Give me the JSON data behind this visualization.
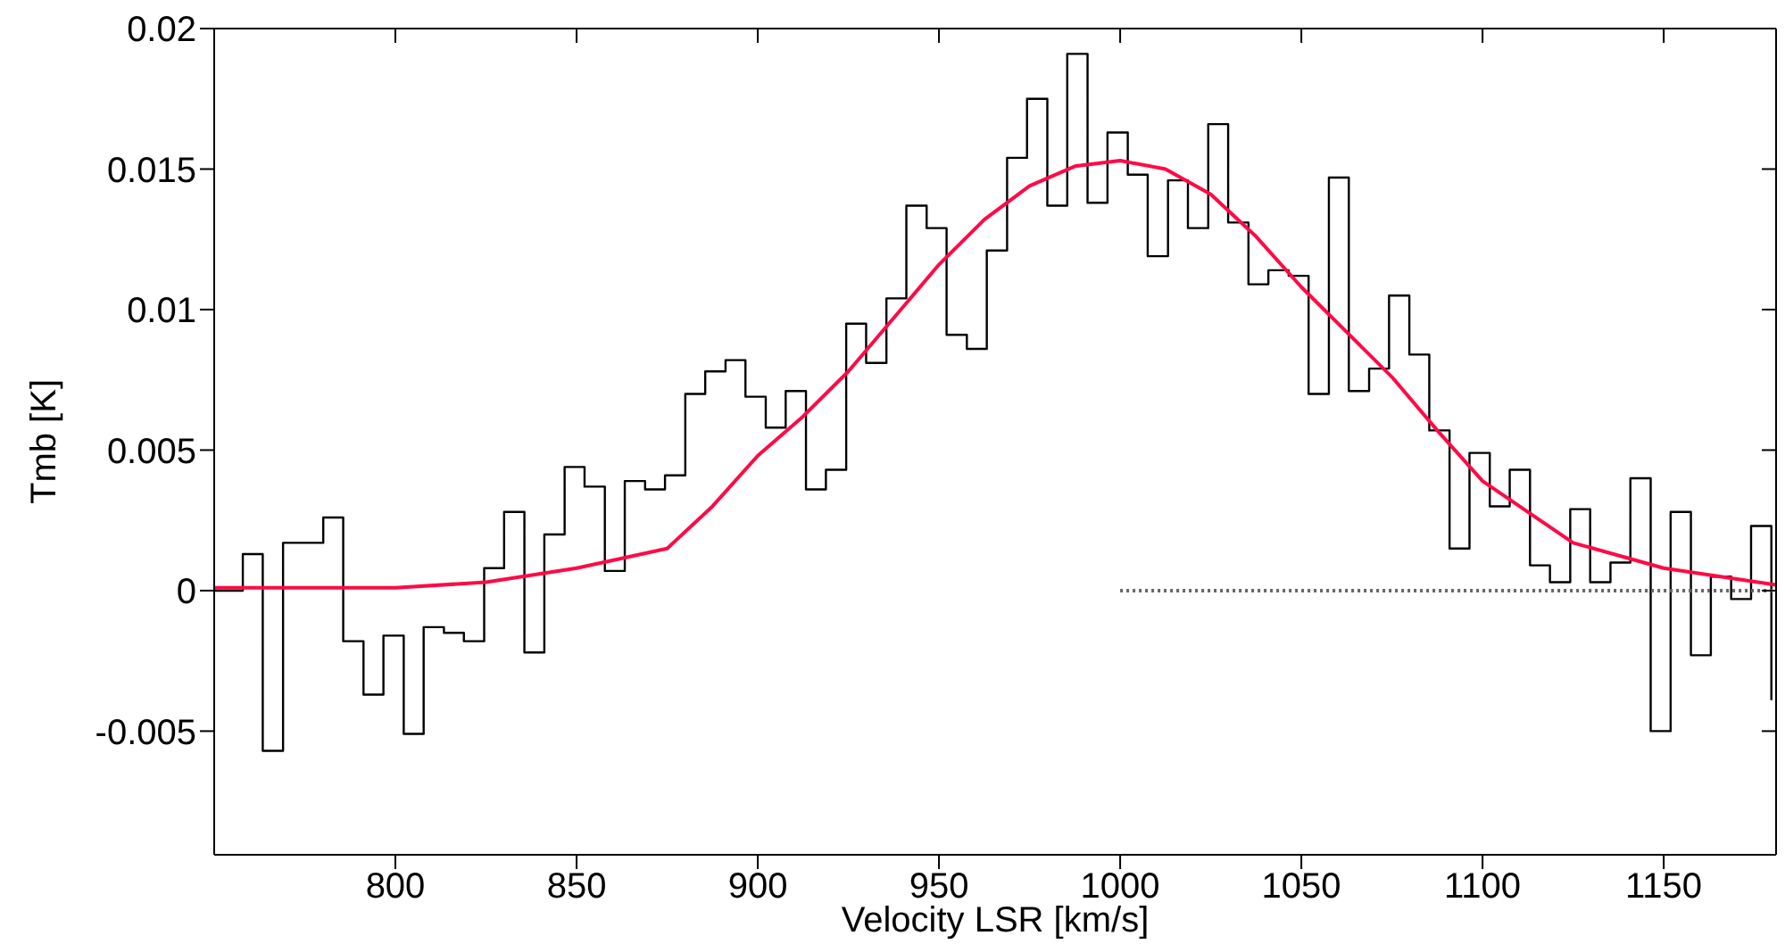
{
  "chart_data": {
    "type": "step",
    "xlabel": "Velocity LSR [km/s]",
    "ylabel": "Tmb [K]",
    "xlim": [
      750,
      1181
    ],
    "xticks": [
      800,
      850,
      900,
      950,
      1000,
      1050,
      1100,
      1150
    ],
    "ylim": [
      -0.0094,
      0.02
    ],
    "yticks": [
      -0.005,
      0,
      0.005,
      0.01,
      0.015,
      0.02
    ],
    "series": [
      {
        "color": "#000000",
        "x": [
          750,
          757.9,
          763.4,
          769.0,
          774.5,
          780.1,
          785.6,
          791.2,
          796.7,
          802.3,
          807.8,
          813.4,
          818.9,
          824.5,
          830.0,
          835.6,
          841.1,
          846.7,
          852.2,
          857.8,
          863.3,
          868.9,
          874.4,
          880.0,
          885.5,
          891.1,
          896.6,
          902.2,
          907.7,
          913.3,
          918.8,
          924.4,
          929.9,
          935.5,
          941.0,
          946.6,
          952.1,
          957.7,
          963.2,
          968.8,
          974.3,
          979.9,
          985.4,
          991.0,
          996.5,
          1002.1,
          1007.6,
          1013.2,
          1018.7,
          1024.3,
          1029.8,
          1035.4,
          1040.9,
          1046.5,
          1052.0,
          1057.6,
          1063.1,
          1068.7,
          1074.2,
          1079.8,
          1085.3,
          1090.9,
          1096.4,
          1102.0,
          1107.5,
          1113.1,
          1118.6,
          1124.2,
          1129.7,
          1135.3,
          1140.8,
          1146.4,
          1151.9,
          1157.5,
          1163.0,
          1168.6,
          1174.1,
          1179.7
        ],
        "values": [
          0,
          0.0013,
          -0.0057,
          0.0017,
          0.0017,
          0.0026,
          -0.0018,
          -0.0037,
          -0.0016,
          -0.0051,
          -0.0013,
          -0.0015,
          -0.0018,
          0.0008,
          0.0028,
          -0.0022,
          0.002,
          0.0044,
          0.0037,
          0.0007,
          0.0039,
          0.0036,
          0.0041,
          0.007,
          0.0078,
          0.0082,
          0.0069,
          0.0058,
          0.0071,
          0.0036,
          0.0043,
          0.0095,
          0.0081,
          0.0104,
          0.0137,
          0.0129,
          0.0091,
          0.0086,
          0.0121,
          0.0154,
          0.0175,
          0.0137,
          0.0191,
          0.0138,
          0.0163,
          0.0148,
          0.0119,
          0.0146,
          0.0129,
          0.0166,
          0.0131,
          0.0109,
          0.0114,
          0.0112,
          0.007,
          0.0147,
          0.0071,
          0.0079,
          0.0105,
          0.0084,
          0.0057,
          0.0015,
          0.0049,
          0.003,
          0.0043,
          0.0009,
          0.0003,
          0.0029,
          0.0003,
          0.001,
          0.004,
          -0.005,
          0.0028,
          -0.0023,
          0.0005,
          -0.0003,
          0.0023,
          -0.0039
        ]
      },
      {
        "type": "line",
        "color": "#ff0a46",
        "x": [
          750,
          800,
          825,
          850,
          875,
          887.5,
          900,
          912.5,
          925,
          950,
          962.5,
          975,
          987.5,
          1000,
          1012.5,
          1025,
          1037.5,
          1050,
          1062.5,
          1075,
          1087.5,
          1100,
          1125,
          1150,
          1181
        ],
        "values": [
          0.0001,
          0.0001,
          0.0003,
          0.0008,
          0.0015,
          0.003,
          0.0048,
          0.0062,
          0.0078,
          0.0116,
          0.0132,
          0.0144,
          0.0151,
          0.0153,
          0.015,
          0.0141,
          0.0126,
          0.0108,
          0.0092,
          0.0076,
          0.0057,
          0.0039,
          0.0017,
          0.0008,
          0.0002
        ]
      },
      {
        "type": "line",
        "color": "#666666",
        "line_style": "dotted",
        "x": [
          1000,
          1181
        ],
        "values": [
          0,
          0
        ]
      }
    ]
  }
}
